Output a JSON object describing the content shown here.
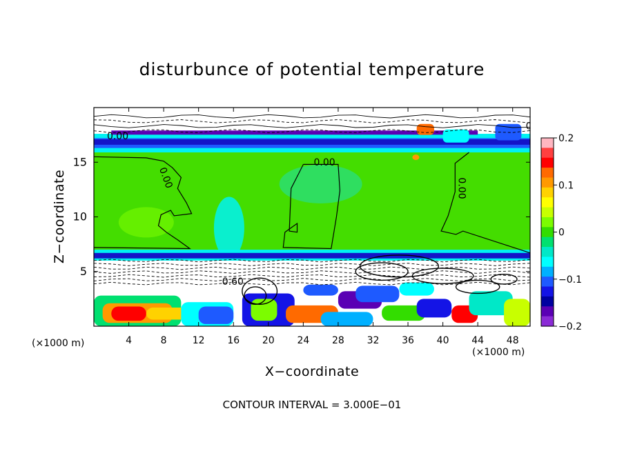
{
  "chart_data": {
    "type": "heatmap",
    "title": "disturbunce of potential temperature",
    "xlabel": "X−coordinate",
    "ylabel": "Z−coordinate",
    "x_unit": "(×1000 m)",
    "y_unit": "(×1000 m)",
    "xlim": [
      0,
      50
    ],
    "ylim": [
      0,
      20
    ],
    "x_ticks": [
      4,
      8,
      12,
      16,
      20,
      24,
      28,
      32,
      36,
      40,
      44,
      48
    ],
    "y_ticks": [
      5,
      10,
      15
    ],
    "colorbar": {
      "range": [
        -0.2,
        0.2
      ],
      "tick_values": [
        0.2,
        0.1,
        0,
        -0.1,
        -0.2
      ],
      "tick_labels": [
        "0.2",
        "0.1",
        "0",
        "−0.1",
        "−0.2"
      ],
      "colors": [
        "#ffb6c1",
        "#ff4040",
        "#ff0000",
        "#ff6a00",
        "#ff9900",
        "#ffd200",
        "#ffff00",
        "#c8ff00",
        "#7cfc00",
        "#33dd00",
        "#00e070",
        "#00e8c8",
        "#00ffff",
        "#00b0ff",
        "#1e5aff",
        "#1414e6",
        "#0000a0",
        "#5a00b4",
        "#8b2bd6"
      ]
    },
    "contour_labels": [
      "0.00",
      "0.00",
      "0.00",
      "0.00",
      "0.00",
      "0.60"
    ],
    "footer": "CONTOUR INTERVAL = 3.000E−01"
  },
  "colors": {
    "green": "#44dd00",
    "deep_blue": "#1414c8",
    "cyan": "#00f2f2",
    "white": "#ffffff"
  }
}
